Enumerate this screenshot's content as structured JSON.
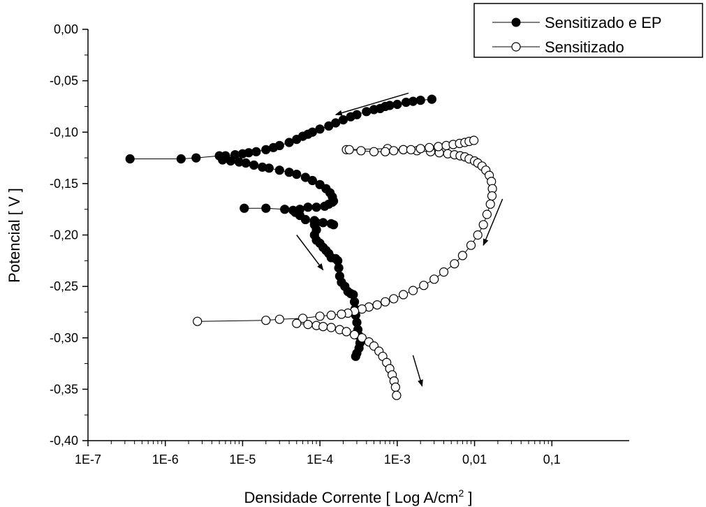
{
  "chart_data": {
    "type": "scatter",
    "title": "",
    "xlabel": "Densidade Corrente [ Log A/cm",
    "xlabel_sup": "2",
    "xlabel_end": " ]",
    "ylabel": "Potencial [ V ]",
    "x_scale": "log",
    "xlim": [
      1e-07,
      1
    ],
    "ylim": [
      -0.4,
      0.0
    ],
    "x_ticks": [
      {
        "value": 1e-07,
        "label": "1E-7"
      },
      {
        "value": 1e-06,
        "label": "1E-6"
      },
      {
        "value": 1e-05,
        "label": "1E-5"
      },
      {
        "value": 0.0001,
        "label": "1E-4"
      },
      {
        "value": 0.001,
        "label": "1E-3"
      },
      {
        "value": 0.01,
        "label": "0,01"
      },
      {
        "value": 0.1,
        "label": "0,1"
      }
    ],
    "y_ticks": [
      {
        "value": 0.0,
        "label": "0,00"
      },
      {
        "value": -0.05,
        "label": "-0,05"
      },
      {
        "value": -0.1,
        "label": "-0,10"
      },
      {
        "value": -0.15,
        "label": "-0,15"
      },
      {
        "value": -0.2,
        "label": "-0,20"
      },
      {
        "value": -0.25,
        "label": "-0,25"
      },
      {
        "value": -0.3,
        "label": "-0,30"
      },
      {
        "value": -0.35,
        "label": "-0,35"
      },
      {
        "value": -0.4,
        "label": "-0,40"
      }
    ],
    "grid": false,
    "legend_position": "top-right",
    "series": [
      {
        "name": "Sensitizado e EP",
        "marker": "filled-circle",
        "color": "#000000",
        "segments": [
          {
            "x": [
              3.5e-07,
              1.6e-06,
              2.5e-06,
              5e-06,
              6e-06,
              8e-06,
              1e-05,
              1.2e-05,
              1.5e-05,
              2e-05,
              2.5e-05,
              3e-05,
              4e-05,
              5e-05,
              6e-05,
              7e-05,
              8e-05,
              0.0001,
              0.00013,
              0.00016,
              0.0002,
              0.00025,
              0.0003,
              0.0004,
              0.0005,
              0.0006,
              0.0007,
              0.0008,
              0.001,
              0.0013,
              0.0016,
              0.002,
              0.0028
            ],
            "y": [
              -0.126,
              -0.126,
              -0.125,
              -0.123,
              -0.123,
              -0.122,
              -0.121,
              -0.12,
              -0.119,
              -0.117,
              -0.115,
              -0.113,
              -0.11,
              -0.107,
              -0.104,
              -0.102,
              -0.1,
              -0.097,
              -0.094,
              -0.091,
              -0.088,
              -0.085,
              -0.083,
              -0.08,
              -0.078,
              -0.077,
              -0.075,
              -0.074,
              -0.073,
              -0.071,
              -0.07,
              -0.069,
              -0.068
            ]
          },
          {
            "x": [
              5.5e-06,
              7e-06,
              9e-06,
              1.1e-05,
              1.4e-05,
              1.8e-05,
              2.2e-05,
              3e-05,
              4e-05,
              5e-05,
              6.5e-05,
              8e-05,
              0.0001,
              0.00012,
              0.000135,
              0.000145,
              0.00015
            ],
            "y": [
              -0.127,
              -0.128,
              -0.129,
              -0.13,
              -0.132,
              -0.134,
              -0.135,
              -0.137,
              -0.139,
              -0.141,
              -0.144,
              -0.147,
              -0.151,
              -0.155,
              -0.159,
              -0.163,
              -0.167
            ]
          },
          {
            "x": [
              1.05e-05,
              2e-05,
              3.5e-05,
              4.5e-05,
              5.5e-05,
              7e-05,
              9e-05,
              0.000115,
              0.00013,
              0.000145
            ],
            "y": [
              -0.174,
              -0.174,
              -0.175,
              -0.176,
              -0.175,
              -0.173,
              -0.173,
              -0.172,
              -0.17,
              -0.168
            ]
          },
          {
            "x": [
              4.8e-05,
              5.5e-05,
              6.5e-05,
              8.5e-05,
              9e-05,
              8.5e-05,
              9e-05,
              0.00011,
              0.00014,
              0.00015
            ],
            "y": [
              -0.178,
              -0.181,
              -0.185,
              -0.19,
              -0.195,
              -0.186,
              -0.188,
              -0.188,
              -0.189,
              -0.19
            ]
          },
          {
            "x": [
              8.5e-05,
              9e-05,
              0.0001,
              0.00011,
              0.00012,
              0.00013,
              0.00014,
              0.00016,
              0.00017,
              0.000175,
              0.00018,
              0.00019,
              0.00021,
              0.00023,
              0.00025,
              0.00027,
              0.00028,
              0.000285,
              0.00029,
              0.0003,
              0.00031,
              0.00032,
              0.00033,
              0.00032,
              0.0003,
              0.00029
            ],
            "y": [
              -0.2,
              -0.205,
              -0.208,
              -0.212,
              -0.215,
              -0.218,
              -0.222,
              -0.223,
              -0.225,
              -0.232,
              -0.24,
              -0.246,
              -0.25,
              -0.255,
              -0.257,
              -0.258,
              -0.265,
              -0.272,
              -0.278,
              -0.285,
              -0.292,
              -0.298,
              -0.305,
              -0.31,
              -0.315,
              -0.318
            ]
          }
        ]
      },
      {
        "name": "Sensitizado",
        "marker": "open-circle",
        "color": "#000000",
        "segments": [
          {
            "x": [
              0.00022,
              0.00075,
              0.0012,
              0.0018,
              0.0027,
              0.0035,
              0.0045,
              0.0055,
              0.0065,
              0.0075,
              0.0085,
              0.01,
              0.011,
              0.0125,
              0.014,
              0.0155,
              0.0165,
              0.017,
              0.0168,
              0.016,
              0.0145,
              0.013,
              0.011,
              0.009,
              0.007,
              0.0055,
              0.004,
              0.003,
              0.0022,
              0.0016,
              0.0012,
              0.0009,
              0.0007,
              0.00055,
              0.00043,
              0.00035,
              0.00028,
              0.00023,
              0.00019,
              0.00014,
              0.0001,
              6e-05,
              3e-05,
              2e-05,
              2.6e-06
            ],
            "y": [
              -0.117,
              -0.116,
              -0.117,
              -0.118,
              -0.119,
              -0.12,
              -0.121,
              -0.122,
              -0.123,
              -0.124,
              -0.126,
              -0.128,
              -0.13,
              -0.133,
              -0.137,
              -0.142,
              -0.148,
              -0.155,
              -0.162,
              -0.17,
              -0.18,
              -0.19,
              -0.2,
              -0.21,
              -0.22,
              -0.228,
              -0.236,
              -0.243,
              -0.249,
              -0.254,
              -0.258,
              -0.262,
              -0.265,
              -0.268,
              -0.27,
              -0.272,
              -0.274,
              -0.276,
              -0.277,
              -0.278,
              -0.279,
              -0.281,
              -0.282,
              -0.283,
              -0.284
            ]
          },
          {
            "x": [
              5e-05,
              7e-05,
              9e-05,
              0.00011,
              0.00014,
              0.00018,
              0.00022,
              0.00028,
              0.00035,
              0.00043,
              0.0005,
              0.00058,
              0.00065,
              0.00073,
              0.0008,
              0.00086,
              0.00091,
              0.00095,
              0.00098
            ],
            "y": [
              -0.286,
              -0.287,
              -0.288,
              -0.289,
              -0.29,
              -0.292,
              -0.294,
              -0.297,
              -0.3,
              -0.304,
              -0.308,
              -0.313,
              -0.318,
              -0.324,
              -0.33,
              -0.336,
              -0.342,
              -0.348,
              -0.356
            ]
          },
          {
            "x": [
              0.00024,
              0.00034,
              0.0005,
              0.0007,
              0.0009,
              0.0012,
              0.0015,
              0.002,
              0.0026,
              0.0034,
              0.0043,
              0.0053,
              0.0064,
              0.0075,
              0.0085,
              0.0098
            ],
            "y": [
              -0.117,
              -0.118,
              -0.119,
              -0.119,
              -0.118,
              -0.117,
              -0.117,
              -0.116,
              -0.115,
              -0.114,
              -0.113,
              -0.112,
              -0.111,
              -0.11,
              -0.109,
              -0.108
            ]
          }
        ]
      }
    ],
    "arrows": [
      {
        "from": [
          0.0014,
          -0.062
        ],
        "to": [
          0.00016,
          -0.083
        ]
      },
      {
        "from": [
          5e-05,
          -0.2
        ],
        "to": [
          0.00011,
          -0.234
        ]
      },
      {
        "from": [
          0.023,
          -0.165
        ],
        "to": [
          0.013,
          -0.21
        ]
      },
      {
        "from": [
          0.0016,
          -0.317
        ],
        "to": [
          0.0021,
          -0.347
        ]
      }
    ]
  }
}
